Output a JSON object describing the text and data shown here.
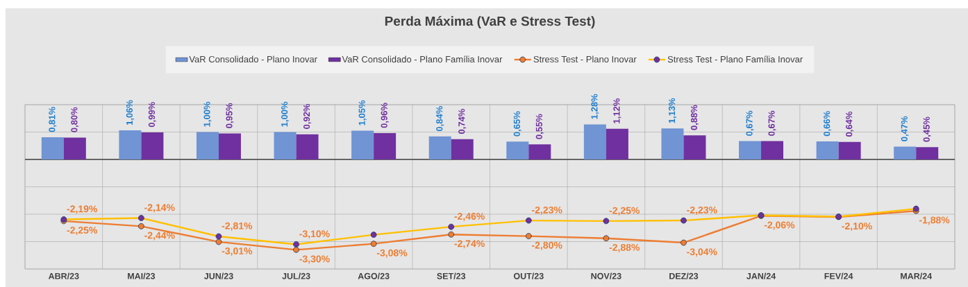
{
  "chart_data": {
    "type": "bar",
    "title": "Perda Máxima (VaR e Stress Test)",
    "categories": [
      "ABR/23",
      "MAI/23",
      "JUN/23",
      "JUL/23",
      "AGO/23",
      "SET/23",
      "OUT/23",
      "NOV/23",
      "DEZ/23",
      "JAN/24",
      "FEV/24",
      "MAR/24"
    ],
    "series": [
      {
        "name": "VaR Consolidado - Plano Inovar",
        "color": "#7094d4",
        "values": [
          0.81,
          1.06,
          1.0,
          1.0,
          1.05,
          0.84,
          0.65,
          1.28,
          1.13,
          0.67,
          0.66,
          0.47
        ],
        "value_labels": [
          "0,81%",
          "1,06%",
          "1,00%",
          "1,00%",
          "1,05%",
          "0,84%",
          "0,65%",
          "1,28%",
          "1,13%",
          "0,67%",
          "0,66%",
          "0,47%"
        ]
      },
      {
        "name": "VaR Consolidado - Plano Família Inovar",
        "color": "#7030a0",
        "values": [
          0.8,
          0.99,
          0.95,
          0.92,
          0.96,
          0.74,
          0.55,
          1.12,
          0.88,
          0.67,
          0.64,
          0.45
        ],
        "value_labels": [
          "0,80%",
          "0,99%",
          "0,95%",
          "0,92%",
          "0,96%",
          "0,74%",
          "0,55%",
          "1,12%",
          "0,88%",
          "0,67%",
          "0,64%",
          "0,45%"
        ]
      },
      {
        "name": "Stress Test - Plano Inovar",
        "type": "line",
        "color": "#ed7d31",
        "marker": "circle",
        "values": [
          -2.25,
          -2.44,
          -3.01,
          -3.3,
          -3.08,
          -2.74,
          -2.8,
          -2.88,
          -3.04,
          -2.06,
          -2.1,
          -1.88
        ],
        "value_labels": [
          "-2,25%",
          "-2,44%",
          "-3,01%",
          "-3,30%",
          "-3,08%",
          "-2,74%",
          "-2,80%",
          "-2,88%",
          "-3,04%",
          "-2,06%",
          "-2,10%",
          "-1,88%"
        ]
      },
      {
        "name": "Stress Test - Plano Família Inovar",
        "type": "line",
        "color": "#ffc000",
        "marker": "circle",
        "colors": [
          "#7030a0",
          "#7030a0",
          "#7030a0",
          "#7030a0",
          "#7030a0",
          "#7030a0",
          "#7030a0",
          "#7030a0",
          "#7030a0",
          "#7030a0",
          "#7030a0",
          "#7030a0"
        ],
        "values": [
          -2.19,
          -2.14,
          -2.81,
          -3.1,
          -2.75,
          -2.46,
          -2.23,
          -2.25,
          -2.23,
          -2.04,
          -2.09,
          -1.8
        ],
        "value_labels": [
          "-2,19%",
          "-2,14%",
          "-2,81%",
          "-3,10%",
          null,
          "-2,46%",
          "-2,23%",
          "-2,25%",
          "-2,23%",
          null,
          null,
          null
        ]
      }
    ],
    "ylim": [
      -4,
      2
    ],
    "yticks": [
      -4,
      -3,
      -2,
      -1,
      0,
      1,
      2
    ],
    "tick_labels": "x",
    "grid": true,
    "legend": "top"
  }
}
